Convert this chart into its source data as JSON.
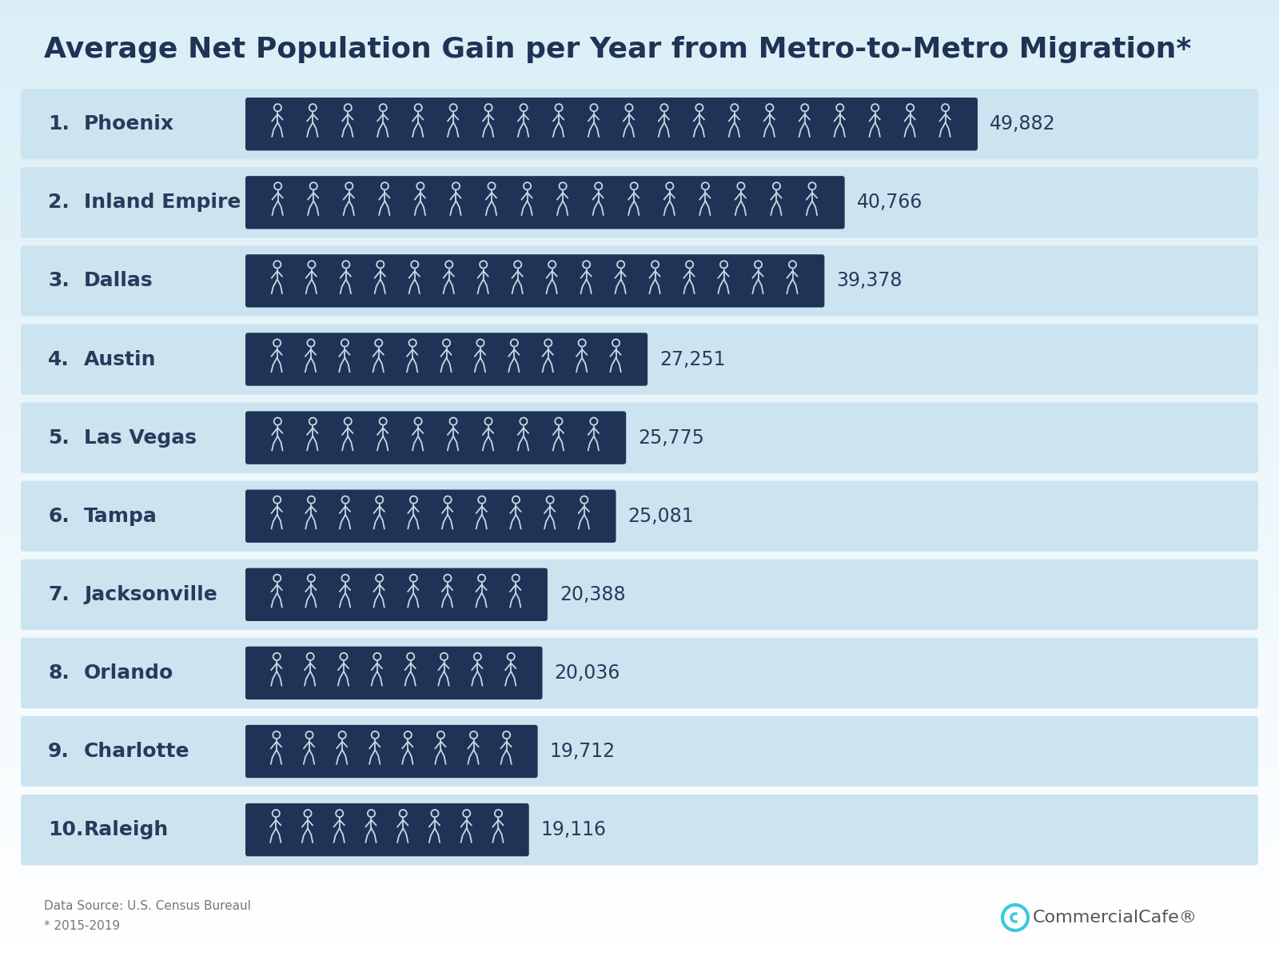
{
  "title": "Average Net Population Gain per Year from Metro-to-Metro Migration*",
  "cities": [
    "Phoenix",
    "Inland Empire",
    "Dallas",
    "Austin",
    "Las Vegas",
    "Tampa",
    "Jacksonville",
    "Orlando",
    "Charlotte",
    "Raleigh"
  ],
  "ranks": [
    1,
    2,
    3,
    4,
    5,
    6,
    7,
    8,
    9,
    10
  ],
  "values": [
    49882,
    40766,
    39378,
    27251,
    25775,
    25081,
    20388,
    20036,
    19712,
    19116
  ],
  "value_labels": [
    "49,882",
    "40,766",
    "39,378",
    "27,251",
    "25,775",
    "25,081",
    "20,388",
    "20,036",
    "19,712",
    "19,116"
  ],
  "max_value": 49882,
  "bar_color": "#1e3355",
  "row_bg_color": "#cce4f0",
  "title_color": "#1e3355",
  "label_color": "#2a3a5c",
  "value_color": "#2a3a5c",
  "icon_color": "#c8d8e8",
  "source_text": "Data Source: U.S. Census Bureaul\n* 2015-2019",
  "brand_text": "CommercialCafe®",
  "figure_bg_top": "#ffffff",
  "figure_bg_bottom": "#daeef7",
  "num_icons_max": 20
}
